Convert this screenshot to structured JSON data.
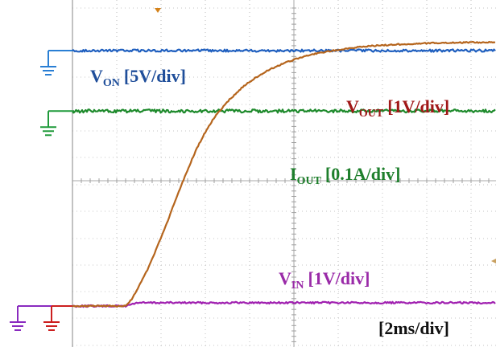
{
  "chart_data": {
    "type": "line",
    "title": "",
    "xlabel": "",
    "ylabel": "",
    "timebase": "[2ms/div]",
    "grid": true,
    "x_unit": "div",
    "y_unit": "div",
    "xlim": [
      0,
      10
    ],
    "ylim": [
      0,
      8
    ],
    "series": [
      {
        "name": "V_ON [5V/div]",
        "label_main": "V",
        "label_sub": "ON",
        "label_scale": "[5V/div]",
        "color": "#1f5fbf",
        "ground_marker_color": "#2a7fd4",
        "ground_level": 6.21,
        "x": [
          0.0,
          10.0
        ],
        "y": [
          6.21,
          6.21
        ]
      },
      {
        "name": "V_OUT [1V/div]",
        "label_main": "V",
        "label_sub": "OUT",
        "label_scale": "[1V/div]",
        "color": "#b5651d",
        "label_color": "#a01818",
        "ground_marker_color": "#cc1f1f",
        "ground_level": 0.0,
        "x": [
          0.0,
          1.2,
          1.35,
          1.5,
          1.7,
          1.9,
          2.1,
          2.3,
          2.5,
          2.8,
          3.0,
          3.2,
          3.5,
          3.8,
          4.0,
          4.4,
          4.8,
          5.2,
          5.6,
          6.0,
          6.5,
          7.0,
          7.5,
          8.0,
          8.5,
          9.0,
          9.5,
          10.0
        ],
        "y": [
          0.0,
          0.0,
          0.18,
          0.48,
          0.9,
          1.4,
          1.92,
          2.5,
          3.05,
          3.82,
          4.23,
          4.58,
          4.97,
          5.28,
          5.46,
          5.72,
          5.92,
          6.06,
          6.16,
          6.23,
          6.3,
          6.34,
          6.37,
          6.39,
          6.4,
          6.41,
          6.41,
          6.42
        ]
      },
      {
        "name": "I_OUT [0.1A/div]",
        "label_main": "I",
        "label_sub": "OUT",
        "label_scale": "[0.1A/div]",
        "color": "#1e8a2c",
        "ground_marker_color": "#1f9a3a",
        "ground_level": 4.74,
        "x": [
          0.0,
          10.0
        ],
        "y": [
          4.74,
          4.74
        ]
      },
      {
        "name": "V_IN [1V/div]",
        "label_main": "V",
        "label_sub": "IN",
        "label_scale": "[1V/div]",
        "color": "#a020b0",
        "ground_marker_color": "#8a2bbf",
        "ground_level": 0.0,
        "x": [
          0.0,
          1.2,
          1.45,
          10.0
        ],
        "y": [
          0.0,
          0.0,
          0.08,
          0.08
        ]
      }
    ]
  }
}
